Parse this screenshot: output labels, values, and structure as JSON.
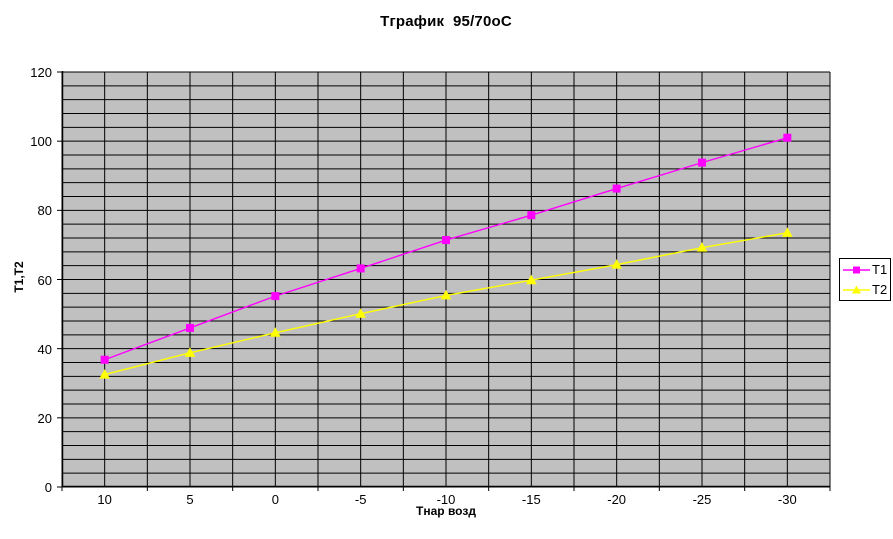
{
  "chart_data": {
    "type": "line",
    "title": "Тграфик  95/70оС",
    "xlabel": "Тнар возд",
    "ylabel": "Т1,Т2",
    "categories": [
      "10",
      "5",
      "0",
      "-5",
      "-10",
      "-15",
      "-20",
      "-25",
      "-30"
    ],
    "series": [
      {
        "name": "Т1",
        "color": "#FF00FF",
        "marker": "square",
        "values": [
          36.8,
          46.0,
          55.2,
          63.2,
          71.4,
          78.6,
          86.3,
          93.8,
          101.0
        ]
      },
      {
        "name": "Т2",
        "color": "#FFFF00",
        "marker": "triangle",
        "values": [
          32.5,
          38.8,
          44.6,
          50.1,
          55.4,
          59.8,
          64.3,
          69.2,
          73.5
        ]
      }
    ],
    "ylim": [
      0,
      120
    ],
    "y_major_unit": 20,
    "y_minor_unit": 4,
    "y_ticks": [
      "0",
      "20",
      "40",
      "60",
      "80",
      "100",
      "120"
    ],
    "grid": "major-and-minor",
    "legend_position": "right",
    "colors": {
      "plot_background": "#C0C0C0",
      "gridline": "#000000",
      "axis": "#000000",
      "page_background": "#FFFFFF"
    }
  }
}
